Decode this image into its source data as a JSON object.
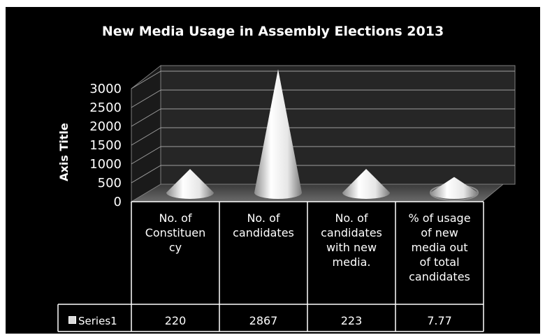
{
  "chart_data": {
    "type": "bar",
    "bar_shape": "cone",
    "three_d": true,
    "title": "New Media Usage in Assembly Elections 2013",
    "ylabel": "Axis Title",
    "xlabel": "",
    "categories": [
      "No. of Constituency",
      "No. of candidates",
      "No. of candidates with new media.",
      "% of usage of new media out of total candidates"
    ],
    "category_labels_displayed": [
      "No. of\nConstituen\ncy",
      "No. of\ncandidates",
      "No. of\ncandidates\nwith new\nmedia.",
      "% of usage\nof new\nmedia out\nof total\ncandidates"
    ],
    "series": [
      {
        "name": "Series1",
        "values": [
          220,
          2867,
          223,
          7.77
        ]
      }
    ],
    "value_labels": [
      "220",
      "2867",
      "223",
      "7.77"
    ],
    "ylim": [
      0,
      3000
    ],
    "yticks": [
      0,
      500,
      1000,
      1500,
      2000,
      2500,
      3000
    ],
    "ytick_labels": [
      "0",
      "500",
      "1000",
      "1500",
      "2000",
      "2500",
      "3000"
    ],
    "grid": true,
    "legend": "data-table",
    "data_table": true,
    "colors": {
      "background": "#000000",
      "text": "#ffffff",
      "grid": "#bfbfbf",
      "wall": "#262626",
      "floor": "#595959",
      "cone": "#ffffff"
    }
  }
}
